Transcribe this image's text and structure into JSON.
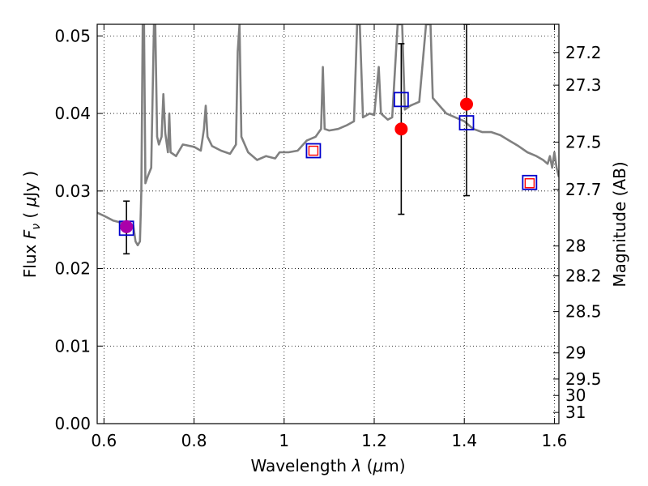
{
  "chart_data": {
    "type": "line",
    "xlabel": "Wavelength  λ (μm)",
    "ylabel": "Flux  F_ν ( μJy )",
    "ylabel_parts": {
      "pre": "Flux  ",
      "sym": "F",
      "sub": "ν",
      "mid": "  ( ",
      "mu": "μ",
      "post": "Jy )"
    },
    "xlabel_parts": {
      "pre": "Wavelength  ",
      "sym": "λ",
      "mid": " (",
      "mu": "μ",
      "post": "m)"
    },
    "y2label": "Magnitude (AB)",
    "xlim": [
      0.585,
      1.61
    ],
    "ylim": [
      0.0,
      0.0515
    ],
    "x_ticks": [
      0.6,
      0.8,
      1.0,
      1.2,
      1.4,
      1.6
    ],
    "x_tick_labels": [
      "0.6",
      "0.8",
      "1",
      "1.2",
      "1.4",
      "1.6"
    ],
    "y_ticks": [
      0.0,
      0.01,
      0.02,
      0.03,
      0.04,
      0.05
    ],
    "y_tick_labels": [
      "0.00",
      "0.01",
      "0.02",
      "0.03",
      "0.04",
      "0.05"
    ],
    "mag_ticks": [
      27.2,
      27.3,
      27.5,
      27.7,
      28,
      28.2,
      28.5,
      29,
      29.5,
      30,
      31
    ],
    "mag_tick_labels": [
      "27.2",
      "27.3",
      "27.5",
      "27.7",
      "28",
      "28.2",
      "28.5",
      "29",
      "29.5",
      "30",
      "31"
    ],
    "grid": true,
    "colors": {
      "spectrum": "#808080",
      "model": "#0000cc",
      "observed": "#ff0000",
      "observed_blend": "#aa00aa",
      "errorbar": "#000000"
    },
    "series": [
      {
        "kind": "spectrum",
        "points": [
          [
            0.585,
            0.0272
          ],
          [
            0.6,
            0.0268
          ],
          [
            0.62,
            0.0262
          ],
          [
            0.64,
            0.0259
          ],
          [
            0.655,
            0.0257
          ],
          [
            0.665,
            0.0256
          ],
          [
            0.67,
            0.0235
          ],
          [
            0.675,
            0.023
          ],
          [
            0.68,
            0.0235
          ],
          [
            0.683,
            0.03
          ],
          [
            0.686,
            0.0515
          ],
          [
            0.689,
            0.0515
          ],
          [
            0.692,
            0.031
          ],
          [
            0.698,
            0.032
          ],
          [
            0.705,
            0.033
          ],
          [
            0.711,
            0.0515
          ],
          [
            0.714,
            0.0515
          ],
          [
            0.718,
            0.037
          ],
          [
            0.722,
            0.036
          ],
          [
            0.728,
            0.037
          ],
          [
            0.732,
            0.0425
          ],
          [
            0.736,
            0.0375
          ],
          [
            0.742,
            0.035
          ],
          [
            0.745,
            0.04
          ],
          [
            0.748,
            0.035
          ],
          [
            0.76,
            0.0345
          ],
          [
            0.775,
            0.036
          ],
          [
            0.8,
            0.0357
          ],
          [
            0.815,
            0.0352
          ],
          [
            0.822,
            0.038
          ],
          [
            0.826,
            0.041
          ],
          [
            0.83,
            0.037
          ],
          [
            0.84,
            0.0358
          ],
          [
            0.86,
            0.0352
          ],
          [
            0.88,
            0.0348
          ],
          [
            0.893,
            0.036
          ],
          [
            0.897,
            0.048
          ],
          [
            0.901,
            0.0515
          ],
          [
            0.905,
            0.037
          ],
          [
            0.92,
            0.035
          ],
          [
            0.94,
            0.034
          ],
          [
            0.96,
            0.0345
          ],
          [
            0.98,
            0.0342
          ],
          [
            0.99,
            0.035
          ],
          [
            1.01,
            0.035
          ],
          [
            1.03,
            0.0352
          ],
          [
            1.05,
            0.0365
          ],
          [
            1.07,
            0.037
          ],
          [
            1.082,
            0.038
          ],
          [
            1.086,
            0.046
          ],
          [
            1.09,
            0.038
          ],
          [
            1.1,
            0.0378
          ],
          [
            1.12,
            0.038
          ],
          [
            1.14,
            0.0385
          ],
          [
            1.155,
            0.039
          ],
          [
            1.162,
            0.0515
          ],
          [
            1.168,
            0.0515
          ],
          [
            1.175,
            0.0395
          ],
          [
            1.19,
            0.04
          ],
          [
            1.2,
            0.0398
          ],
          [
            1.21,
            0.046
          ],
          [
            1.215,
            0.04
          ],
          [
            1.23,
            0.0392
          ],
          [
            1.24,
            0.0395
          ],
          [
            1.252,
            0.0515
          ],
          [
            1.262,
            0.0515
          ],
          [
            1.268,
            0.0405
          ],
          [
            1.28,
            0.041
          ],
          [
            1.3,
            0.0415
          ],
          [
            1.315,
            0.0515
          ],
          [
            1.325,
            0.0515
          ],
          [
            1.33,
            0.042
          ],
          [
            1.345,
            0.041
          ],
          [
            1.36,
            0.04
          ],
          [
            1.38,
            0.0395
          ],
          [
            1.4,
            0.039
          ],
          [
            1.42,
            0.038
          ],
          [
            1.44,
            0.0376
          ],
          [
            1.46,
            0.0376
          ],
          [
            1.48,
            0.0372
          ],
          [
            1.5,
            0.0365
          ],
          [
            1.52,
            0.0358
          ],
          [
            1.54,
            0.035
          ],
          [
            1.56,
            0.0345
          ],
          [
            1.575,
            0.034
          ],
          [
            1.585,
            0.0335
          ],
          [
            1.59,
            0.0345
          ],
          [
            1.595,
            0.033
          ],
          [
            1.6,
            0.035
          ],
          [
            1.605,
            0.033
          ],
          [
            1.61,
            0.0318
          ]
        ]
      },
      {
        "kind": "model_photometry",
        "marker": "open-square",
        "points": [
          [
            0.65,
            0.0252
          ],
          [
            1.065,
            0.0352
          ],
          [
            1.26,
            0.0418
          ],
          [
            1.405,
            0.0388
          ],
          [
            1.545,
            0.0311
          ]
        ]
      },
      {
        "kind": "observed_photometry",
        "marker": "filled-circle-with-errorbar",
        "points": [
          {
            "x": 0.65,
            "y": 0.0254,
            "err": [
              0.0219,
              0.0287
            ],
            "color": "observed_blend"
          },
          {
            "x": 1.065,
            "y": 0.0352,
            "err": null,
            "color": "observed",
            "inner_square": true
          },
          {
            "x": 1.26,
            "y": 0.038,
            "err": [
              0.027,
              0.049
            ],
            "color": "observed"
          },
          {
            "x": 1.405,
            "y": 0.0412,
            "err": [
              0.0294,
              0.0515
            ],
            "color": "observed"
          },
          {
            "x": 1.545,
            "y": 0.031,
            "err": null,
            "color": "observed",
            "inner_square": true
          }
        ]
      }
    ]
  }
}
